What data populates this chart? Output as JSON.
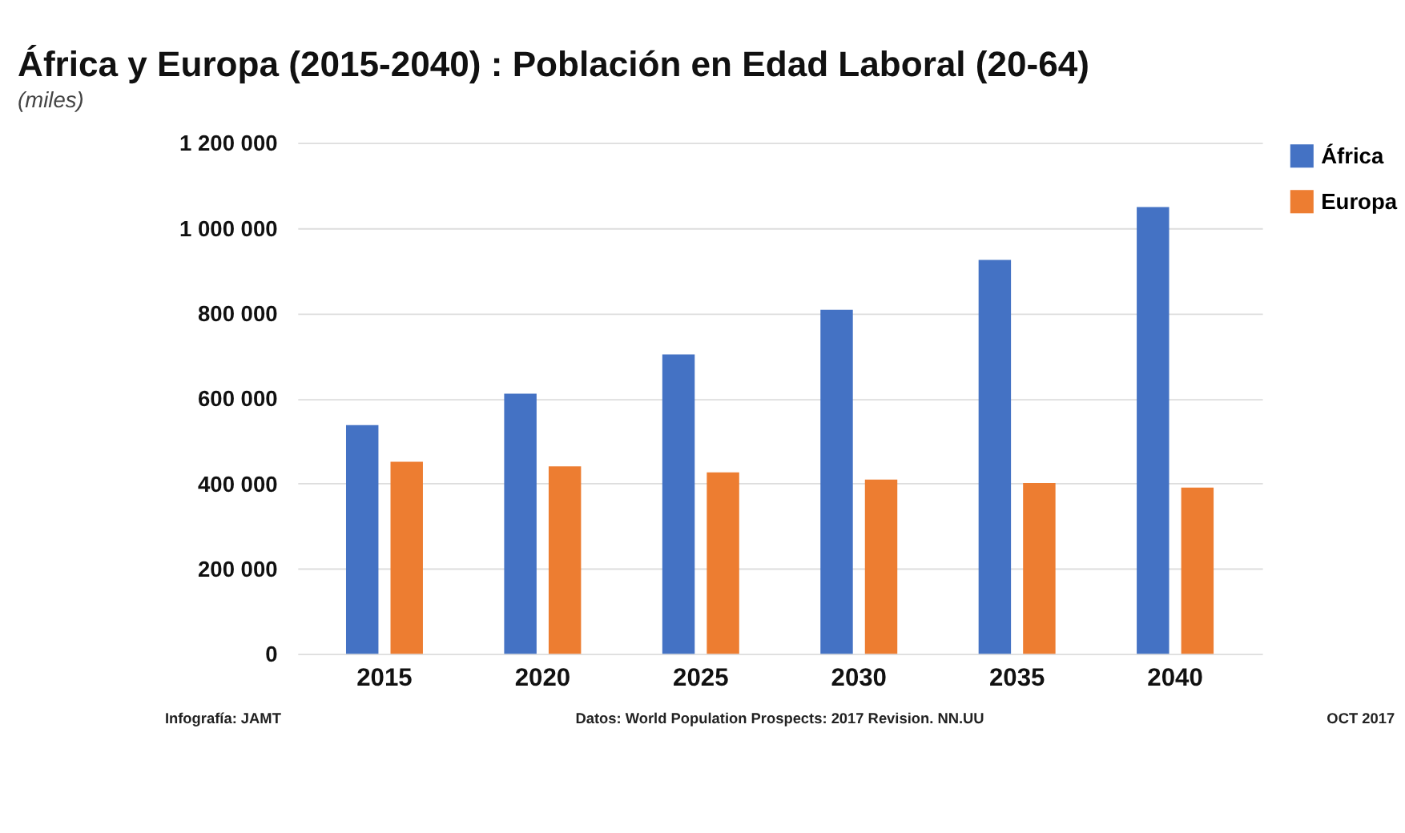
{
  "chart_data": {
    "type": "bar",
    "title": "África y Europa (2015-2040) : Población  en Edad Laboral (20-64)",
    "subtitle": "(miles)",
    "categories": [
      "2015",
      "2020",
      "2025",
      "2030",
      "2035",
      "2040"
    ],
    "series": [
      {
        "name": "África",
        "color": "#4472c4",
        "values": [
          537000,
          611000,
          703000,
          808000,
          925000,
          1049000
        ]
      },
      {
        "name": "Europa",
        "color": "#ed7d31",
        "values": [
          451000,
          440000,
          426000,
          409000,
          401000,
          390000
        ]
      }
    ],
    "ylim": [
      0,
      1200000
    ],
    "yticks": [
      0,
      {
        "value": 200000,
        "label": "200 000"
      },
      {
        "value": 400000,
        "label": "400 000"
      },
      {
        "value": 600000,
        "label": "600 000"
      },
      {
        "value": 800000,
        "label": "800 000"
      },
      {
        "value": 1000000,
        "label": "1 000 000"
      },
      {
        "value": 1200000,
        "label": "1 200 000"
      }
    ],
    "grid": "y",
    "legend": "right",
    "annotations": [
      "Infografía: JAMT",
      "Datos: World Population Prospects: 2017 Revision. NN.UU",
      "OCT 2017"
    ]
  }
}
